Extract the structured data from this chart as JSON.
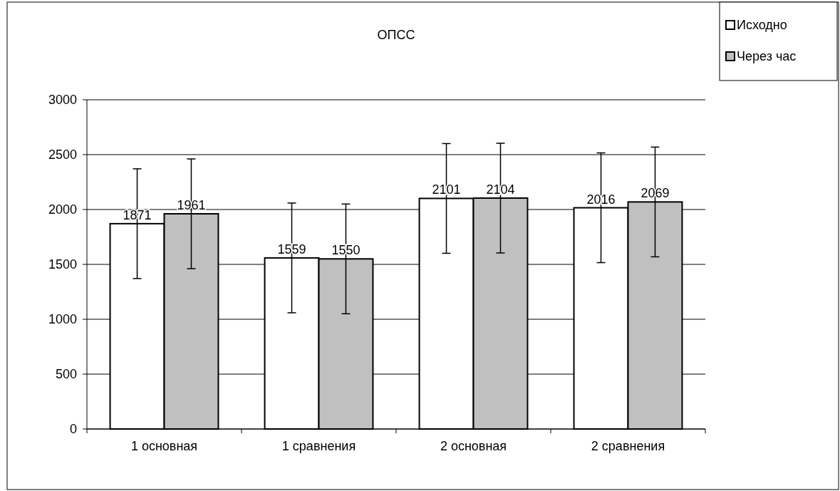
{
  "chart_data": {
    "type": "bar",
    "title": "ОПСС",
    "categories": [
      "1 основная",
      "1 сравнения",
      "2 основная",
      "2 сравнения"
    ],
    "series": [
      {
        "name": "Исходно",
        "color": "#ffffff",
        "values": [
          1871,
          1559,
          2101,
          2016
        ],
        "errors": [
          500,
          500,
          500,
          500
        ]
      },
      {
        "name": "Через час",
        "color": "#c0c0c0",
        "values": [
          1961,
          1550,
          2104,
          2069
        ],
        "errors": [
          500,
          500,
          500,
          500
        ]
      }
    ],
    "ylim": [
      0,
      3000
    ],
    "yticks": [
      0,
      500,
      1000,
      1500,
      2000,
      2500,
      3000
    ],
    "grid": "y",
    "legend": "top right",
    "data_labels": true
  }
}
